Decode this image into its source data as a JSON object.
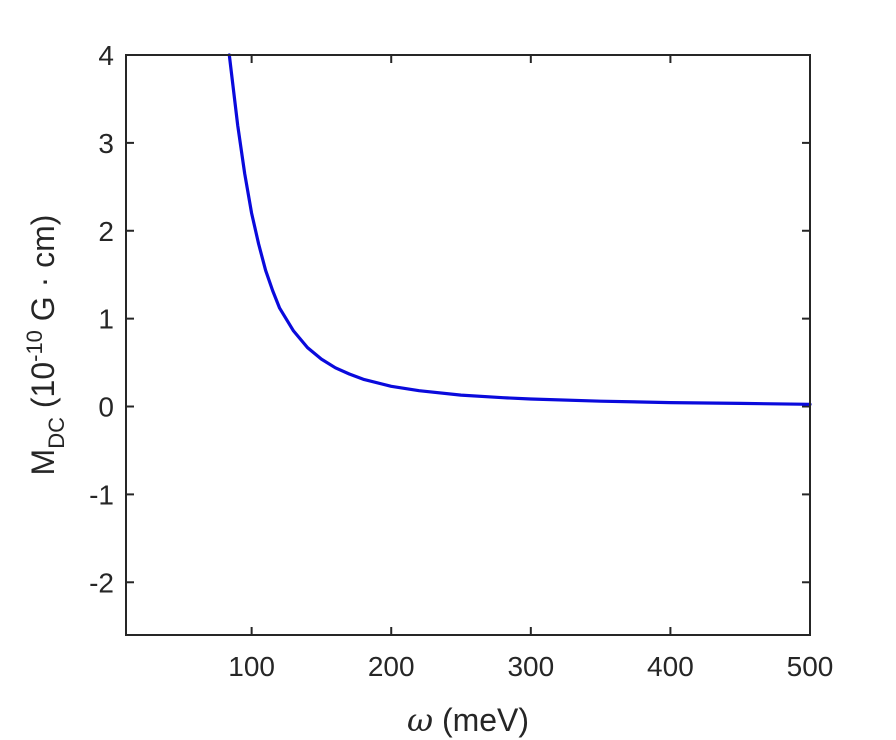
{
  "chart_data": {
    "type": "line",
    "xlabel_symbol": "ω",
    "xlabel_rest": " (meV)",
    "ylabel_main": "M",
    "ylabel_sub": "DC",
    "ylabel_open": " (10",
    "ylabel_exp": "-10",
    "ylabel_rest": " G · cm)",
    "xlim": [
      10,
      500
    ],
    "ylim": [
      -2.6,
      4
    ],
    "x_ticks": [
      100,
      200,
      300,
      400,
      500
    ],
    "x_tick_labels": [
      "100",
      "200",
      "300",
      "400",
      "500"
    ],
    "y_ticks": [
      -2,
      -1,
      0,
      1,
      2,
      3,
      4
    ],
    "y_tick_labels": [
      "-2",
      "-1",
      "0",
      "1",
      "2",
      "3",
      "4"
    ],
    "grid": false,
    "series": [
      {
        "color": "#0a0adc",
        "x": [
          84,
          90,
          95,
          100,
          105,
          110,
          115,
          120,
          130,
          140,
          150,
          160,
          170,
          180,
          200,
          220,
          250,
          280,
          300,
          350,
          400,
          450,
          500
        ],
        "y": [
          4.0,
          3.2,
          2.65,
          2.2,
          1.85,
          1.55,
          1.32,
          1.12,
          0.86,
          0.67,
          0.54,
          0.44,
          0.37,
          0.31,
          0.23,
          0.18,
          0.13,
          0.1,
          0.085,
          0.06,
          0.045,
          0.035,
          0.025
        ]
      }
    ]
  }
}
